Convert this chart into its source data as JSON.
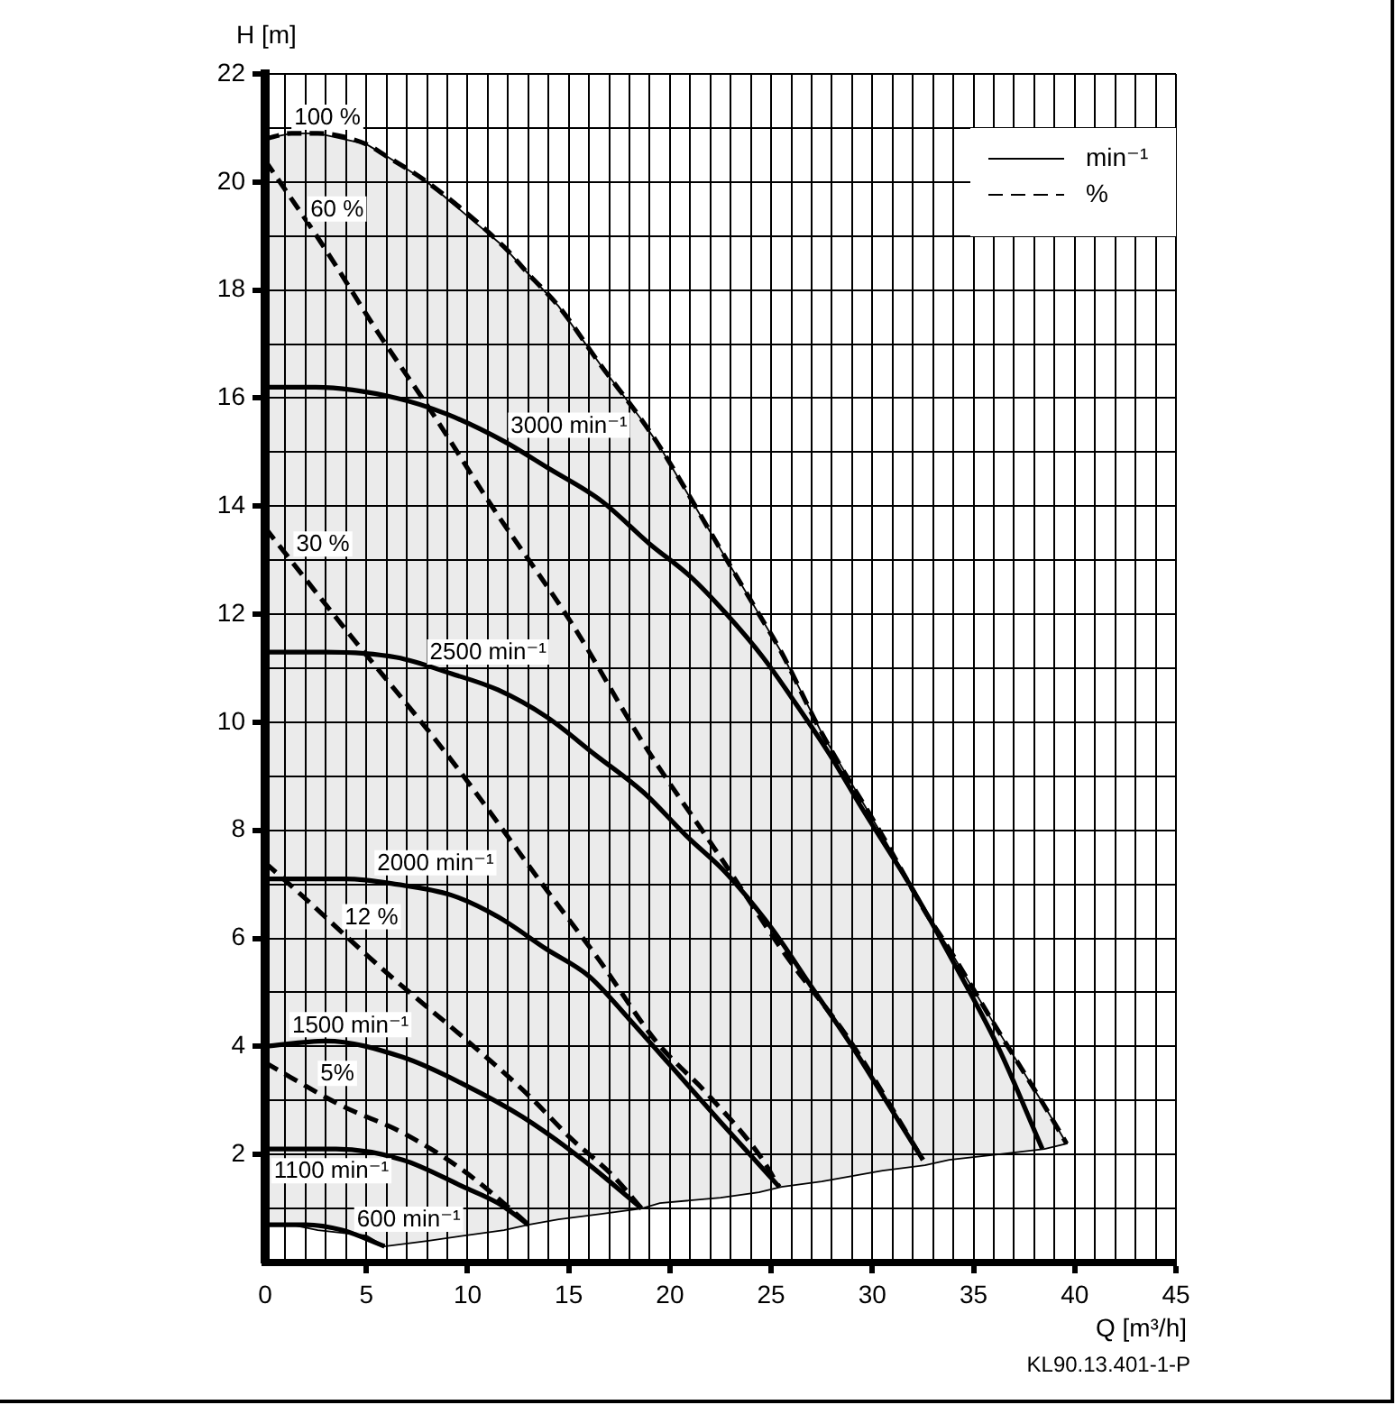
{
  "chart_data": {
    "type": "line",
    "xlabel": "Q [m³/h]",
    "ylabel": "H [m]",
    "xlim": [
      0,
      45
    ],
    "ylim": [
      0,
      22
    ],
    "xticks": [
      0,
      {
        "value": 1,
        "label": null
      },
      {
        "value": 2,
        "label": null
      },
      {
        "value": 3,
        "label": null
      },
      {
        "value": 4,
        "label": null
      },
      5,
      {
        "value": 6,
        "label": null
      },
      {
        "value": 7,
        "label": null
      },
      {
        "value": 8,
        "label": null
      },
      {
        "value": 9,
        "label": null
      },
      10,
      {
        "value": 11,
        "label": null
      },
      {
        "value": 12,
        "label": null
      },
      {
        "value": 13,
        "label": null
      },
      {
        "value": 14,
        "label": null
      },
      15,
      {
        "value": 16,
        "label": null
      },
      {
        "value": 17,
        "label": null
      },
      {
        "value": 18,
        "label": null
      },
      {
        "value": 19,
        "label": null
      },
      20,
      {
        "value": 21,
        "label": null
      },
      {
        "value": 22,
        "label": null
      },
      {
        "value": 23,
        "label": null
      },
      {
        "value": 24,
        "label": null
      },
      25,
      {
        "value": 26,
        "label": null
      },
      {
        "value": 27,
        "label": null
      },
      {
        "value": 28,
        "label": null
      },
      {
        "value": 29,
        "label": null
      },
      30,
      {
        "value": 31,
        "label": null
      },
      {
        "value": 32,
        "label": null
      },
      {
        "value": 33,
        "label": null
      },
      {
        "value": 34,
        "label": null
      },
      35,
      {
        "value": 36,
        "label": null
      },
      {
        "value": 37,
        "label": null
      },
      {
        "value": 38,
        "label": null
      },
      {
        "value": 39,
        "label": null
      },
      40,
      {
        "value": 41,
        "label": null
      },
      {
        "value": 42,
        "label": null
      },
      {
        "value": 43,
        "label": null
      },
      {
        "value": 44,
        "label": null
      },
      45
    ],
    "yticks": [
      {
        "value": 0,
        "label": null
      },
      {
        "value": 1,
        "label": null
      },
      2,
      {
        "value": 3,
        "label": null
      },
      4,
      {
        "value": 5,
        "label": null
      },
      6,
      {
        "value": 7,
        "label": null
      },
      8,
      {
        "value": 9,
        "label": null
      },
      10,
      {
        "value": 11,
        "label": null
      },
      12,
      {
        "value": 13,
        "label": null
      },
      14,
      {
        "value": 15,
        "label": null
      },
      16,
      {
        "value": 17,
        "label": null
      },
      18,
      {
        "value": 19,
        "label": null
      },
      20,
      {
        "value": 21,
        "label": null
      },
      22
    ],
    "grid": true,
    "legend": "top right",
    "line_style": "solid",
    "series": [
      {
        "name": "min⁻¹",
        "color": "#000000",
        "x": [
          0,
          2.5,
          6.5,
          9,
          11.8,
          14,
          16.6,
          19,
          21,
          22.8,
          24.6,
          26.3,
          27.9,
          29.5,
          32,
          33.8,
          36.2,
          38.4
        ],
        "values": [
          16.2,
          16.2,
          16.0,
          15.7,
          15.2,
          14.7,
          14.1,
          13.3,
          12.7,
          12.0,
          11.2,
          10.3,
          9.4,
          8.4,
          6.9,
          5.7,
          4.0,
          2.1
        ]
      },
      {
        "color": "#000000",
        "x": [
          0,
          3,
          6.5,
          9.2,
          11.5,
          13.9,
          16.3,
          18.7,
          20.8,
          22.8,
          25,
          27,
          29,
          31,
          32.5
        ],
        "values": [
          11.3,
          11.3,
          11.2,
          10.9,
          10.6,
          10.1,
          9.4,
          8.7,
          7.9,
          7.2,
          6.2,
          5.1,
          4.0,
          2.8,
          1.9
        ]
      },
      {
        "color": "#000000",
        "x": [
          0,
          4,
          6.5,
          9.2,
          11.5,
          13.9,
          16,
          18,
          19.9,
          22.5,
          25.4
        ],
        "values": [
          7.1,
          7.1,
          7.0,
          6.8,
          6.4,
          5.8,
          5.3,
          4.5,
          3.7,
          2.6,
          1.4
        ]
      },
      {
        "color": "#000000",
        "x": [
          0,
          3,
          6.8,
          9.8,
          12.7,
          15.7,
          18.6
        ],
        "values": [
          4.0,
          4.1,
          3.8,
          3.3,
          2.7,
          1.9,
          1.0
        ]
      },
      {
        "color": "#000000",
        "x": [
          0,
          3.5,
          6.8,
          9.8,
          11.5,
          13.0
        ],
        "values": [
          2.1,
          2.1,
          1.9,
          1.4,
          1.1,
          0.7
        ]
      },
      {
        "color": "#000000",
        "x": [
          0,
          2,
          3.8,
          5.9
        ],
        "values": [
          0.7,
          0.7,
          0.6,
          0.3
        ]
      },
      {
        "name": "%",
        "color": "#000000",
        "line_style": "dashed",
        "x": [
          0,
          1.3,
          2.6,
          5,
          5.9,
          8,
          11.8,
          13,
          14.5,
          16.6,
          18.6,
          19.5,
          22.5,
          24.4,
          25.5,
          27.5,
          30.5,
          32.6,
          33.8,
          36.2,
          38.5,
          39.6
        ],
        "values": [
          20.8,
          20.9,
          20.9,
          20.7,
          20.5,
          20.0,
          18.8,
          18.3,
          17.7,
          16.6,
          15.6,
          15.1,
          13.2,
          12.0,
          11.3,
          9.8,
          7.9,
          6.5,
          5.8,
          4.3,
          2.9,
          2.2
        ],
        "upper": [
          20.8,
          20.9,
          20.9,
          20.7,
          20.5,
          20.0,
          18.8,
          18.3,
          17.7,
          16.6,
          15.6,
          15.1,
          13.2,
          12.0,
          11.3,
          9.8,
          7.9,
          6.5,
          5.8,
          4.3,
          2.9,
          2.2
        ],
        "lower": [
          0.7,
          0.7,
          0.6,
          0.5,
          0.3,
          0.4,
          0.6,
          0.7,
          0.8,
          0.9,
          1.0,
          1.1,
          1.2,
          1.3,
          1.4,
          1.5,
          1.7,
          1.8,
          1.9,
          2.0,
          2.1,
          2.2
        ]
      },
      {
        "color": "#000000",
        "line_style": "dashed",
        "x": [
          0,
          2.9,
          5.6,
          8.3,
          11.2,
          15.2,
          18.7,
          22.5,
          25.7,
          28.9,
          32.5
        ],
        "values": [
          20.4,
          18.8,
          17.2,
          15.7,
          14.0,
          11.8,
          9.6,
          7.5,
          5.7,
          4.1,
          1.9
        ]
      },
      {
        "color": "#000000",
        "line_style": "dashed",
        "x": [
          0,
          3.8,
          9.2,
          13.9,
          16.5,
          19.3,
          21.9,
          24.4,
          25.4
        ],
        "values": [
          13.6,
          11.8,
          9.3,
          6.9,
          5.6,
          4.1,
          3.1,
          2.0,
          1.4
        ]
      },
      {
        "color": "#000000",
        "line_style": "dashed",
        "x": [
          0,
          1.8,
          4.7,
          6.2,
          10.0,
          13.0,
          15.1,
          17.2,
          18.6
        ],
        "values": [
          7.4,
          6.8,
          5.8,
          5.3,
          4.1,
          3.1,
          2.3,
          1.6,
          1.0
        ]
      },
      {
        "color": "#000000",
        "line_style": "dashed",
        "x": [
          0,
          3.8,
          6.8,
          9.8,
          12.4,
          13.0
        ],
        "values": [
          3.7,
          2.9,
          2.4,
          1.7,
          0.9,
          0.7
        ]
      }
    ],
    "annotations": [
      {
        "text": "100 %",
        "x": 1.3,
        "y": 20.9
      },
      {
        "text": "60 %",
        "x": 2.1,
        "y": 19.2
      },
      {
        "text": "3000 min⁻¹",
        "x": 12.0,
        "y": 15.2
      },
      {
        "text": "30 %",
        "x": 1.4,
        "y": 13.0
      },
      {
        "text": "2500 min⁻¹",
        "x": 8.0,
        "y": 11.0
      },
      {
        "text": "2000 min⁻¹",
        "x": 5.4,
        "y": 7.1
      },
      {
        "text": "12 %",
        "x": 3.8,
        "y": 6.1
      },
      {
        "text": "1500 min⁻¹",
        "x": 1.2,
        "y": 4.1
      },
      {
        "text": "5%",
        "x": 2.6,
        "y": 3.2
      },
      {
        "text": "1100 min⁻¹",
        "x": 0.3,
        "y": 1.4
      },
      {
        "text": "600 min⁻¹",
        "x": 4.4,
        "y": 0.5
      },
      "KL90.13.401-1-P"
    ]
  }
}
